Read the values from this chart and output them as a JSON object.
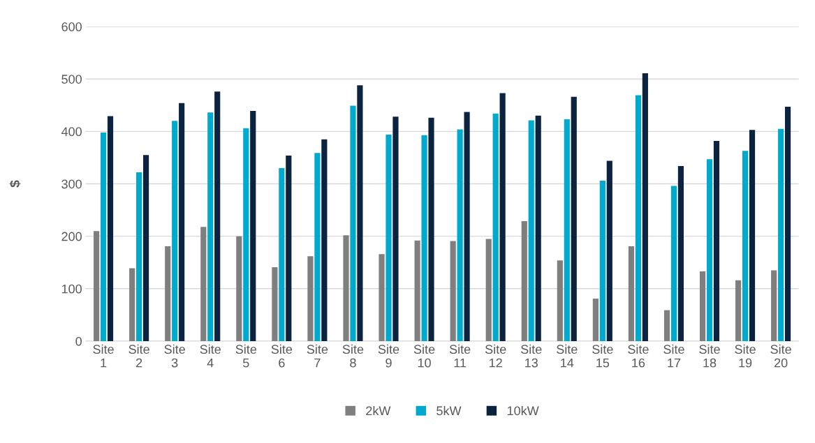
{
  "chart_data": {
    "type": "bar",
    "ylabel": "$",
    "categories": [
      "Site\n1",
      "Site\n2",
      "Site\n3",
      "Site\n4",
      "Site\n5",
      "Site\n6",
      "Site\n7",
      "Site\n8",
      "Site\n9",
      "Site\n10",
      "Site\n11",
      "Site\n12",
      "Site\n13",
      "Site\n14",
      "Site\n15",
      "Site\n16",
      "Site\n17",
      "Site\n18",
      "Site\n19",
      "Site\n20"
    ],
    "series": [
      {
        "name": "2kW",
        "color": "#7f7f7f",
        "values": [
          210,
          139,
          181,
          218,
          200,
          141,
          162,
          202,
          166,
          192,
          191,
          195,
          229,
          154,
          81,
          181,
          59,
          133,
          116,
          135
        ]
      },
      {
        "name": "5kW",
        "color": "#00a9ce",
        "values": [
          398,
          322,
          420,
          436,
          406,
          330,
          359,
          449,
          394,
          393,
          404,
          434,
          421,
          423,
          306,
          469,
          296,
          347,
          363,
          405
        ]
      },
      {
        "name": "10kW",
        "color": "#0c2340",
        "values": [
          429,
          355,
          454,
          476,
          439,
          354,
          385,
          488,
          428,
          426,
          437,
          473,
          430,
          466,
          344,
          511,
          334,
          382,
          403,
          447
        ]
      }
    ],
    "ylim": [
      0,
      600
    ],
    "yticks": [
      0,
      100,
      200,
      300,
      400,
      500,
      600
    ],
    "grid": "y",
    "legend": "bottom"
  }
}
